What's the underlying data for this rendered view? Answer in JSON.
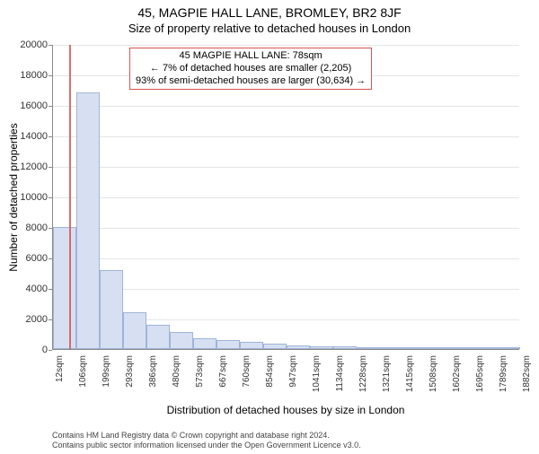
{
  "title": "45, MAGPIE HALL LANE, BROMLEY, BR2 8JF",
  "subtitle": "Size of property relative to detached houses in London",
  "chart": {
    "type": "histogram",
    "ylabel": "Number of detached properties",
    "xlabel": "Distribution of detached houses by size in London",
    "ylim": [
      0,
      20000
    ],
    "ytick_step": 2000,
    "yticks": [
      0,
      2000,
      4000,
      6000,
      8000,
      10000,
      12000,
      14000,
      16000,
      18000,
      20000
    ],
    "xticks": [
      "12sqm",
      "106sqm",
      "199sqm",
      "293sqm",
      "386sqm",
      "480sqm",
      "573sqm",
      "667sqm",
      "760sqm",
      "854sqm",
      "947sqm",
      "1041sqm",
      "1134sqm",
      "1228sqm",
      "1321sqm",
      "1415sqm",
      "1508sqm",
      "1602sqm",
      "1695sqm",
      "1789sqm",
      "1882sqm"
    ],
    "x_min": 12,
    "x_max": 1882,
    "bin_lefts": [
      12,
      106,
      199,
      293,
      386,
      480,
      573,
      667,
      760,
      854,
      947,
      1041,
      1134,
      1228,
      1321,
      1415,
      1508,
      1602,
      1695,
      1789
    ],
    "bin_width_sqm": 93.5,
    "bar_values": [
      8000,
      16800,
      5200,
      2400,
      1600,
      1100,
      700,
      600,
      450,
      380,
      250,
      180,
      170,
      120,
      100,
      80,
      60,
      50,
      40,
      30
    ],
    "bar_fill": "#d6e0f2",
    "bar_border": "#a0b4d8",
    "grid_color": "#e5e5e5",
    "axis_color": "#888888",
    "background": "#ffffff"
  },
  "marker": {
    "value_sqm": 78,
    "color": "#d9534f",
    "label_lines": [
      "45 MAGPIE HALL LANE: 78sqm",
      "← 7% of detached houses are smaller (2,205)",
      "93% of semi-detached houses are larger (30,634) →"
    ]
  },
  "credits": {
    "line1": "Contains HM Land Registry data © Crown copyright and database right 2024.",
    "line2": "Contains public sector information licensed under the Open Government Licence v3.0."
  }
}
